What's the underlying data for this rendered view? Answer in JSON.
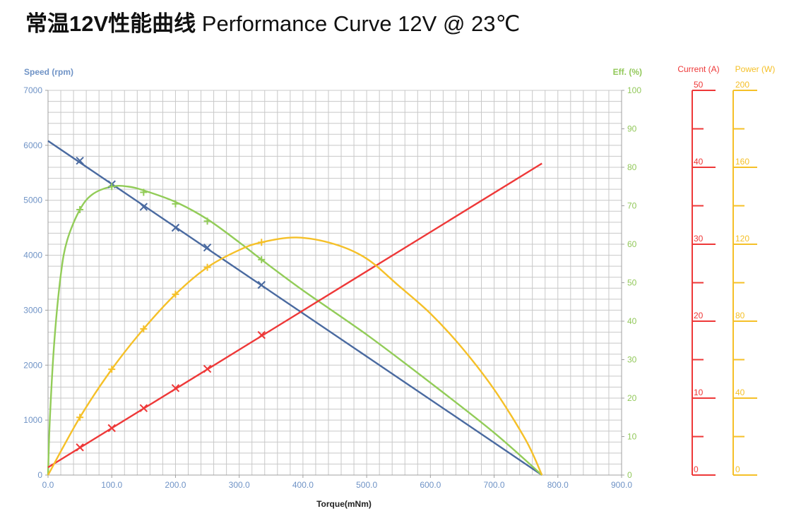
{
  "title": {
    "cn": "常温12V性能曲线",
    "en": "Performance Curve 12V @ 23℃"
  },
  "colors": {
    "speed": "#4a6aa0",
    "efficiency": "#92cc58",
    "current": "#ee3838",
    "power": "#f5c028",
    "grid": "#c8c8c8",
    "speed_label": "#6f93c6",
    "eff_label": "#92c85a"
  },
  "chart_data": {
    "type": "line",
    "xlabel": "Torque(mNm)",
    "xlim": [
      0,
      900
    ],
    "x_ticks": [
      "0.0",
      "100.0",
      "200.0",
      "300.0",
      "400.0",
      "500.0",
      "600.0",
      "700.0",
      "800.0",
      "900.0"
    ],
    "axes": {
      "speed": {
        "label": "Speed (rpm)",
        "range": [
          0,
          7000
        ],
        "ticks": [
          "0",
          "1000",
          "2000",
          "3000",
          "4000",
          "5000",
          "6000",
          "7000"
        ]
      },
      "efficiency": {
        "label": "Eff. (%)",
        "range": [
          0,
          100
        ],
        "ticks": [
          "0",
          "10",
          "20",
          "30",
          "40",
          "50",
          "60",
          "70",
          "80",
          "90",
          "100"
        ]
      },
      "current": {
        "label": "Current (A)",
        "range": [
          0,
          50
        ],
        "ticks": [
          "0",
          "10",
          "20",
          "30",
          "40",
          "50"
        ]
      },
      "power": {
        "label": "Power (W)",
        "range": [
          0,
          200
        ],
        "ticks": [
          "0",
          "40",
          "80",
          "120",
          "160",
          "200"
        ]
      }
    },
    "grid": true,
    "series": [
      {
        "name": "Speed (rpm)",
        "axis": "speed",
        "marker": "x",
        "curve": {
          "x": [
            0,
            775
          ],
          "y": [
            6080,
            0
          ]
        },
        "points": {
          "x": [
            50,
            100,
            150,
            200,
            250,
            335
          ],
          "y": [
            5720,
            5290,
            4880,
            4500,
            4140,
            3460
          ]
        }
      },
      {
        "name": "Eff. (%)",
        "axis": "efficiency",
        "marker": "+",
        "curve": {
          "x": [
            0,
            3,
            10,
            20,
            30,
            50,
            70,
            100,
            125,
            150,
            200,
            250,
            300,
            335,
            400,
            500,
            600,
            700,
            775
          ],
          "y": [
            0,
            15,
            35,
            52,
            61,
            69,
            73,
            75,
            75,
            74,
            71,
            66.5,
            60.5,
            56,
            48,
            36.5,
            24,
            11,
            0
          ]
        },
        "points": {
          "x": [
            50,
            100,
            150,
            200,
            250,
            335
          ],
          "y": [
            69,
            75,
            73.5,
            70.5,
            66,
            56
          ]
        }
      },
      {
        "name": "Current (A)",
        "axis": "current",
        "marker": "x",
        "curve": {
          "x": [
            0,
            775
          ],
          "y": [
            1.0,
            40.5
          ]
        },
        "points": {
          "x": [
            50,
            100,
            150,
            200,
            250,
            335
          ],
          "y": [
            3.6,
            6.1,
            8.7,
            11.3,
            13.8,
            18.2
          ]
        }
      },
      {
        "name": "Power (W)",
        "axis": "power",
        "marker": "+",
        "curve": {
          "x": [
            0,
            50,
            100,
            150,
            200,
            250,
            300,
            335,
            390,
            450,
            500,
            550,
            600,
            650,
            700,
            750,
            775
          ],
          "y": [
            0,
            30,
            55,
            76,
            94,
            108,
            117,
            121,
            123.5,
            120,
            112.5,
            98.5,
            84,
            66,
            44.5,
            18,
            0
          ]
        },
        "points": {
          "x": [
            50,
            100,
            150,
            200,
            250,
            335
          ],
          "y": [
            30,
            55,
            76,
            94,
            108,
            121
          ]
        }
      }
    ]
  }
}
